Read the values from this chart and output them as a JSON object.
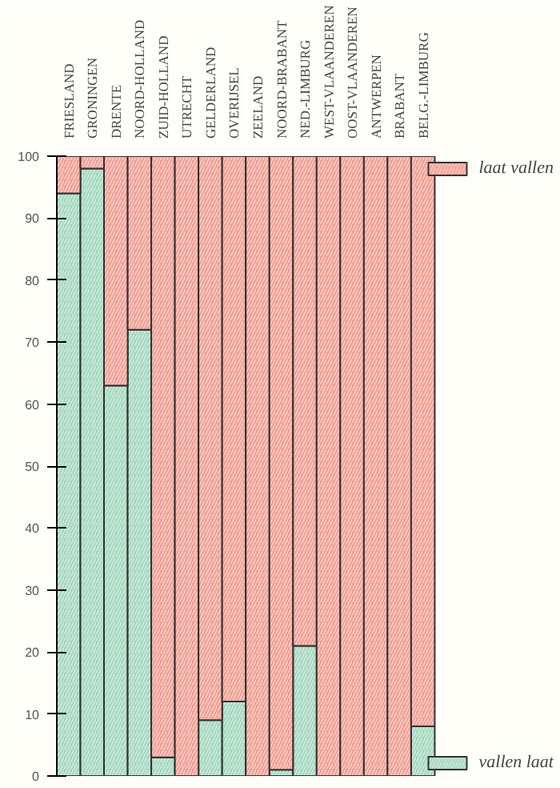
{
  "chart_data": {
    "type": "bar",
    "stacked": true,
    "categories": [
      "FRIESLAND",
      "GRONINGEN",
      "DRENTE",
      "NOORD-HOLLAND",
      "ZUID-HOLLAND",
      "UTRECHT",
      "GELDERLAND",
      "OVERIJSEL",
      "ZEELAND",
      "NOORD-BRABANT",
      "NED.-LIMBURG",
      "WEST-VLAANDEREN",
      "OOST-VLAANDEREN",
      "ANTWERPEN",
      "BRABANT",
      "BELG.-LIMBURG"
    ],
    "series": [
      {
        "name": "vallen laat",
        "color": "#9fd6bb",
        "values": [
          94,
          98,
          63,
          72,
          3,
          0,
          9,
          12,
          0,
          1,
          21,
          0,
          0,
          0,
          0,
          8
        ]
      },
      {
        "name": "laat vallen",
        "color": "#f29a8e",
        "values": [
          6,
          2,
          37,
          28,
          97,
          100,
          91,
          88,
          100,
          99,
          79,
          100,
          100,
          100,
          100,
          92
        ]
      }
    ],
    "ylim": [
      0,
      100
    ],
    "yticks": [
      0,
      10,
      20,
      30,
      40,
      50,
      60,
      70,
      80,
      90,
      100
    ],
    "grid": false,
    "legend": "right"
  }
}
